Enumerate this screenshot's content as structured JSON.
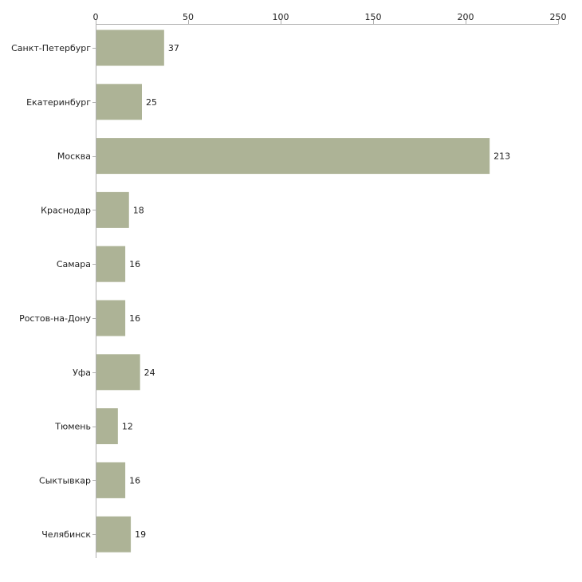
{
  "chart_data": {
    "type": "bar",
    "orientation": "horizontal",
    "title": "",
    "xlabel": "",
    "ylabel": "",
    "xlim": [
      0,
      250
    ],
    "x_ticks": [
      0,
      50,
      100,
      150,
      200,
      250
    ],
    "x_tick_labels": [
      "0",
      "50",
      "100",
      "150",
      "200",
      "250"
    ],
    "x_axis_position": "top",
    "grid": false,
    "legend": "none",
    "categories": [
      "Санкт-Петербург",
      "Екатеринбург",
      "Москва",
      "Краснодар",
      "Самара",
      "Ростов-на-Дону",
      "Уфа",
      "Тюмень",
      "Сыктывкар",
      "Челябинск"
    ],
    "values": [
      37,
      25,
      213,
      18,
      16,
      16,
      24,
      12,
      16,
      19
    ],
    "value_labels": [
      "37",
      "25",
      "213",
      "18",
      "16",
      "16",
      "24",
      "12",
      "16",
      "19"
    ],
    "bar_color": "#adb396"
  }
}
